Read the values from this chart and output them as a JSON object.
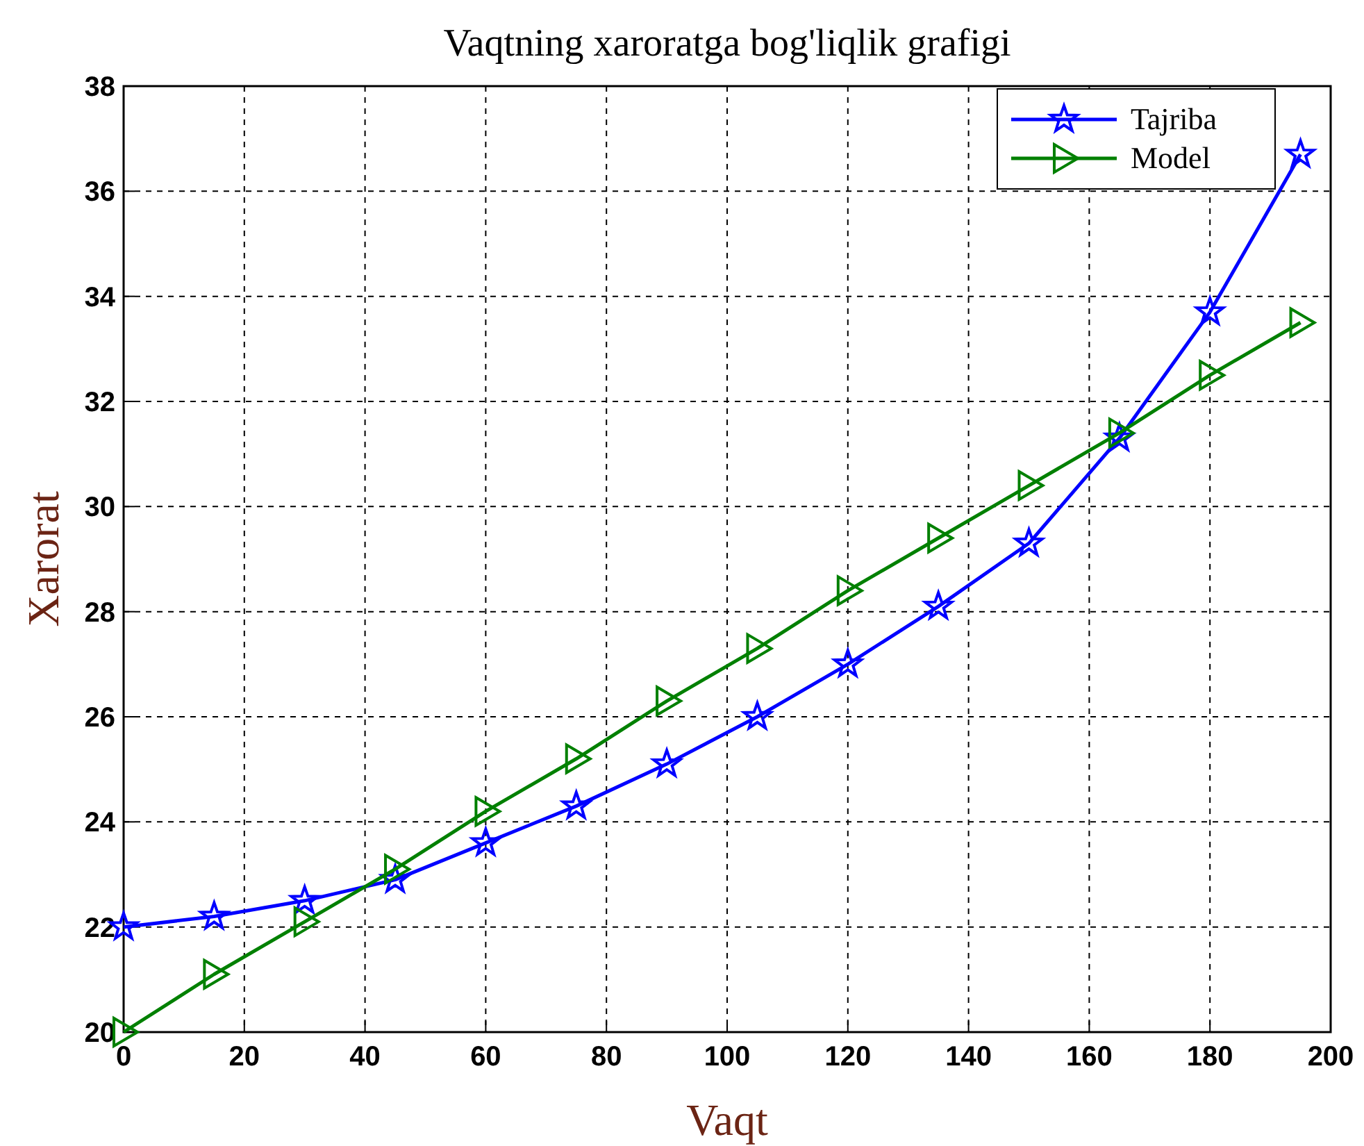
{
  "chart_data": {
    "type": "line",
    "title": "Vaqtning xaroratga bog'liqlik grafigi",
    "xlabel": "Vaqt",
    "ylabel": "Xarorat",
    "x": [
      0,
      15,
      30,
      45,
      60,
      75,
      90,
      105,
      120,
      135,
      150,
      165,
      180,
      195
    ],
    "series": [
      {
        "name": "Tajriba",
        "color": "#0000ff",
        "marker": "star",
        "values": [
          22.0,
          22.2,
          22.5,
          22.9,
          23.6,
          24.3,
          25.1,
          26.0,
          27.0,
          28.1,
          29.3,
          31.3,
          33.7,
          36.7
        ]
      },
      {
        "name": "Model",
        "color": "#008000",
        "marker": "triangle",
        "values": [
          20.0,
          21.1,
          22.1,
          23.1,
          24.2,
          25.2,
          26.3,
          27.3,
          28.4,
          29.4,
          30.4,
          31.4,
          32.5,
          33.5
        ]
      }
    ],
    "xlim": [
      0,
      200
    ],
    "xticks": [
      0,
      20,
      40,
      60,
      80,
      100,
      120,
      140,
      160,
      180,
      200
    ],
    "ylim": [
      20,
      38
    ],
    "yticks": [
      20,
      22,
      24,
      26,
      28,
      30,
      32,
      34,
      36,
      38
    ],
    "grid": true,
    "legend": "top right",
    "line_style": "solid"
  }
}
